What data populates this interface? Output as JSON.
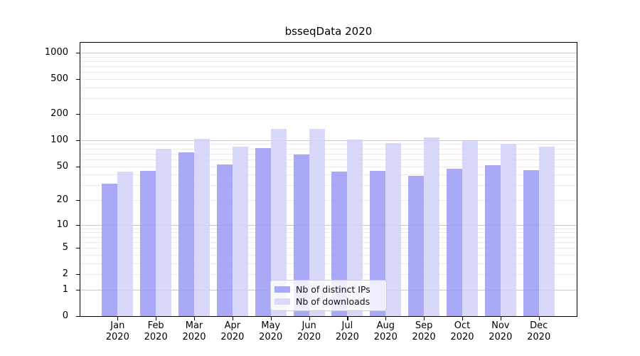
{
  "chart_data": {
    "type": "bar",
    "title": "bsseqData 2020",
    "categories": [
      "Jan",
      "Feb",
      "Mar",
      "Apr",
      "May",
      "Jun",
      "Jul",
      "Aug",
      "Sep",
      "Oct",
      "Nov",
      "Dec"
    ],
    "x_sublabel": "2020",
    "series": [
      {
        "key": "distinct-ips",
        "name": "Nb of distinct IPs",
        "color": "#a9a9f7",
        "fill": "rgba(154,154,246,0.85)",
        "values": [
          31,
          44,
          73,
          52,
          81,
          68,
          43,
          44,
          39,
          47,
          51,
          45
        ]
      },
      {
        "key": "downloads",
        "name": "Nb of downloads",
        "color": "#d9d9fa",
        "fill": "rgba(209,209,250,0.85)",
        "values": [
          43,
          80,
          103,
          84,
          136,
          136,
          101,
          92,
          107,
          98,
          90,
          84
        ]
      }
    ],
    "y_scale": "log1p",
    "y_ticks": [
      0,
      1,
      2,
      5,
      10,
      20,
      50,
      100,
      200,
      500,
      1000
    ],
    "y_major_gridlines": [
      1,
      10,
      100,
      1000
    ],
    "y_minor_gridlines": [
      2,
      3,
      4,
      5,
      6,
      7,
      8,
      9,
      20,
      30,
      40,
      50,
      60,
      70,
      80,
      90,
      200,
      300,
      400,
      500,
      600,
      700,
      800,
      900
    ],
    "ylim": [
      0,
      1300
    ],
    "grid": true,
    "legend_position": "lower-center-inside",
    "colors": {
      "minor_grid": "#ebebeb",
      "major_grid": "#c9c9c9",
      "spine": "#000000",
      "text": "#000000",
      "legend_border": "#cccccc"
    }
  }
}
